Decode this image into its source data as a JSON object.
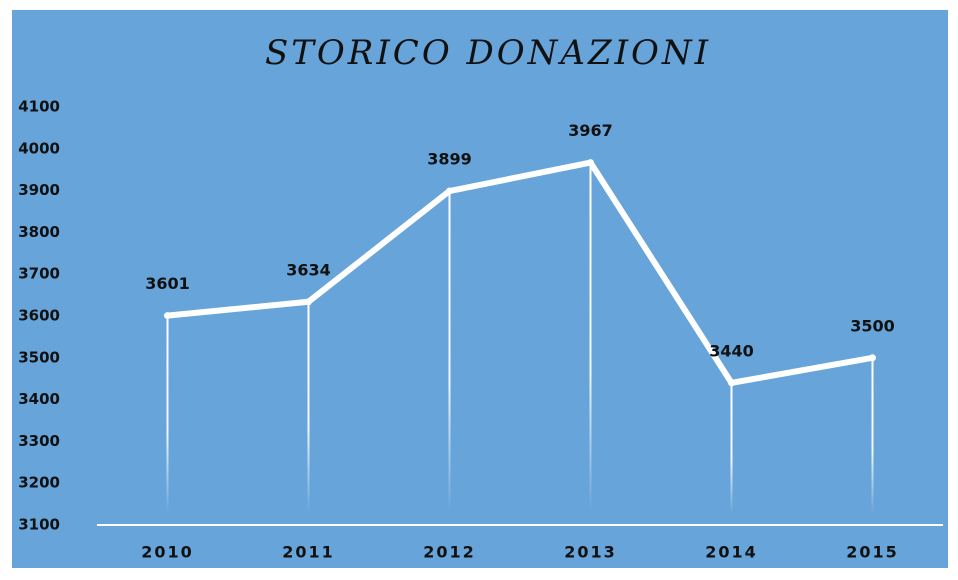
{
  "chart_data": {
    "type": "line",
    "title": "STORICO DONAZIONI",
    "categories": [
      "2010",
      "2011",
      "2012",
      "2013",
      "2014",
      "2015"
    ],
    "values": [
      3601,
      3634,
      3899,
      3967,
      3440,
      3500
    ],
    "color": "#ffffff",
    "ylim": [
      3100,
      4100
    ],
    "yticks": [
      3100,
      3200,
      3300,
      3400,
      3500,
      3600,
      3700,
      3800,
      3900,
      4000,
      4100
    ],
    "grid": false
  }
}
